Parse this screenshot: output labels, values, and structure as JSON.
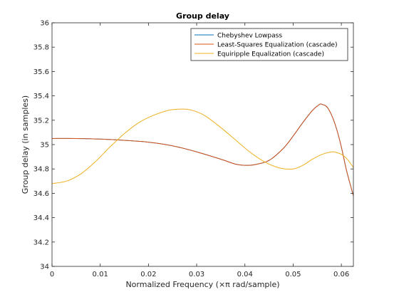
{
  "chart_data": {
    "type": "line",
    "title": "Group delay",
    "xlabel": "Normalized Frequency (×π rad/sample)",
    "ylabel": "Group delay (in samples)",
    "xlim": [
      0,
      0.0625
    ],
    "ylim": [
      34,
      36
    ],
    "xticks": [
      0,
      0.01,
      0.02,
      0.03,
      0.04,
      0.05,
      0.06
    ],
    "xtick_labels": [
      "0",
      "0.01",
      "0.02",
      "0.03",
      "0.04",
      "0.05",
      "0.06"
    ],
    "yticks": [
      34,
      34.2,
      34.4,
      34.6,
      34.8,
      35,
      35.2,
      35.4,
      35.6,
      35.8,
      36
    ],
    "ytick_labels": [
      "34",
      "34.2",
      "34.4",
      "34.6",
      "34.8",
      "35",
      "35.2",
      "35.4",
      "35.6",
      "35.8",
      "36"
    ],
    "grid": false,
    "legend_position": "top-right",
    "series": [
      {
        "name": "Chebyshev Lowpass",
        "color": "#0072BD",
        "x": [
          0,
          0.005,
          0.01,
          0.015,
          0.02,
          0.025,
          0.03,
          0.035,
          0.038,
          0.04,
          0.042,
          0.045,
          0.048,
          0.05,
          0.052,
          0.054,
          0.0555,
          0.056,
          0.057,
          0.058,
          0.059,
          0.06,
          0.061,
          0.062,
          0.0625
        ],
        "y": [
          35.05,
          35.05,
          35.045,
          35.035,
          35.02,
          34.99,
          34.94,
          34.88,
          34.84,
          34.83,
          34.835,
          34.87,
          34.97,
          35.07,
          35.18,
          35.28,
          35.33,
          35.33,
          35.31,
          35.24,
          35.13,
          34.98,
          34.8,
          34.65,
          34.58
        ]
      },
      {
        "name": "Least-Squares Equalization (cascade)",
        "color": "#D95319",
        "x": [
          0,
          0.005,
          0.01,
          0.015,
          0.02,
          0.025,
          0.03,
          0.035,
          0.038,
          0.04,
          0.042,
          0.045,
          0.048,
          0.05,
          0.052,
          0.054,
          0.0555,
          0.056,
          0.057,
          0.058,
          0.059,
          0.06,
          0.061,
          0.062,
          0.0625
        ],
        "y": [
          35.05,
          35.05,
          35.045,
          35.035,
          35.02,
          34.99,
          34.94,
          34.88,
          34.84,
          34.83,
          34.835,
          34.87,
          34.97,
          35.07,
          35.18,
          35.28,
          35.33,
          35.33,
          35.31,
          35.24,
          35.13,
          34.98,
          34.8,
          34.65,
          34.58
        ]
      },
      {
        "name": "Equiripple Equalization (cascade)",
        "color": "#EDB120",
        "x": [
          0,
          0.003,
          0.006,
          0.009,
          0.012,
          0.015,
          0.018,
          0.021,
          0.024,
          0.026,
          0.028,
          0.03,
          0.032,
          0.035,
          0.038,
          0.041,
          0.044,
          0.047,
          0.05,
          0.052,
          0.054,
          0.056,
          0.058,
          0.059,
          0.06,
          0.061,
          0.062,
          0.0625
        ],
        "y": [
          34.68,
          34.7,
          34.76,
          34.86,
          34.98,
          35.09,
          35.18,
          35.24,
          35.28,
          35.29,
          35.29,
          35.27,
          35.23,
          35.14,
          35.04,
          34.94,
          34.86,
          34.81,
          34.8,
          34.83,
          34.88,
          34.92,
          34.94,
          34.935,
          34.92,
          34.89,
          34.84,
          34.81
        ]
      }
    ]
  }
}
